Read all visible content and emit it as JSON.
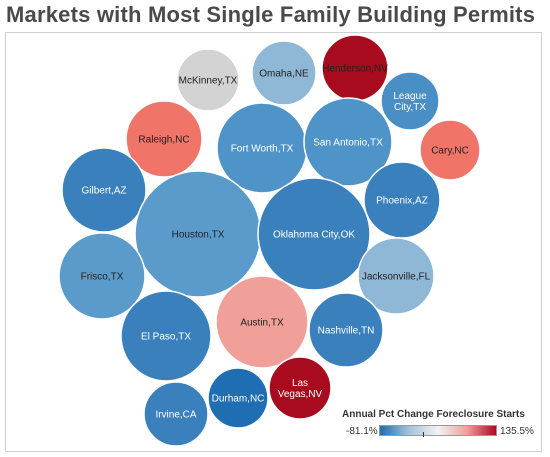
{
  "title": "Markets with Most Single Family Building Permits",
  "chart_data": {
    "type": "bubble",
    "title": "Markets with Most Single Family Building Permits",
    "color_legend": {
      "title": "Annual Pct Change Foreclosure Starts",
      "min_label": "-81.1%",
      "max_label": "135.5%",
      "min": -81.1,
      "max": 135.5,
      "colors": [
        "#1f6db2",
        "#a3c3dc",
        "#f2f2f2",
        "#f0a098",
        "#a80b1e"
      ]
    },
    "bubbles": [
      {
        "label": "McKinney,TX",
        "color": "#d3d3d3",
        "text_color": "#222222"
      },
      {
        "label": "Omaha,NE",
        "color": "#8fb8d6",
        "text_color": "#222222"
      },
      {
        "label": "Henderson,NV",
        "color": "#a80b1e",
        "text_color": "#222222"
      },
      {
        "label": "League City,TX",
        "color": "#4a8ec6",
        "text_color": "#ffffff"
      },
      {
        "label": "Raleigh,NC",
        "color": "#f07468",
        "text_color": "#222222"
      },
      {
        "label": "Fort Worth,TX",
        "color": "#4f94c9",
        "text_color": "#ffffff"
      },
      {
        "label": "San Antonio,TX",
        "color": "#4f94c9",
        "text_color": "#ffffff"
      },
      {
        "label": "Cary,NC",
        "color": "#f07468",
        "text_color": "#222222"
      },
      {
        "label": "Gilbert,AZ",
        "color": "#3a80bd",
        "text_color": "#ffffff"
      },
      {
        "label": "Phoenix,AZ",
        "color": "#3a80bd",
        "text_color": "#ffffff"
      },
      {
        "label": "Houston,TX",
        "color": "#5b9bcc",
        "text_color": "#222222"
      },
      {
        "label": "Oklahoma City,OK",
        "color": "#3a80bd",
        "text_color": "#ffffff"
      },
      {
        "label": "Frisco,TX",
        "color": "#5b9bcc",
        "text_color": "#222222"
      },
      {
        "label": "Jacksonville,FL",
        "color": "#8fb8d6",
        "text_color": "#222222"
      },
      {
        "label": "El Paso,TX",
        "color": "#3a80bd",
        "text_color": "#ffffff"
      },
      {
        "label": "Austin,TX",
        "color": "#f0a098",
        "text_color": "#222222"
      },
      {
        "label": "Nashville,TN",
        "color": "#3a80bd",
        "text_color": "#ffffff"
      },
      {
        "label": "Irvine,CA",
        "color": "#3a80bd",
        "text_color": "#ffffff"
      },
      {
        "label": "Durham,NC",
        "color": "#1f6db2",
        "text_color": "#ffffff"
      },
      {
        "label": "Las Vegas,NV",
        "color": "#a80b1e",
        "text_color": "#ffffff"
      }
    ]
  }
}
